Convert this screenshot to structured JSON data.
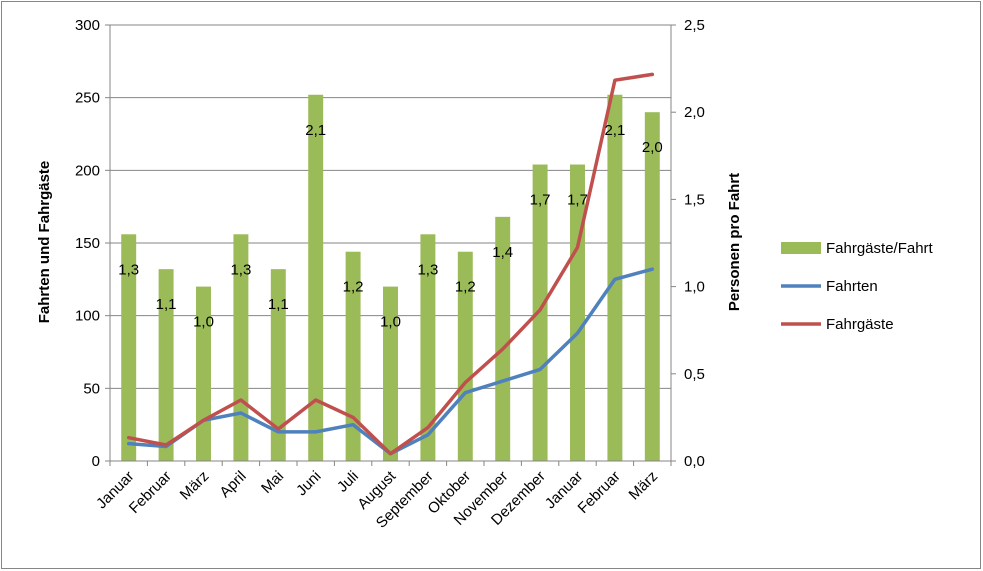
{
  "chart_data": {
    "type": "bar",
    "categories": [
      "Januar",
      "Februar",
      "März",
      "April",
      "Mai",
      "Juni",
      "Juli",
      "August",
      "September",
      "Oktober",
      "November",
      "Dezember",
      "Januar",
      "Februar",
      "März"
    ],
    "y_left": {
      "label": "Fahrten und Fahrgäste",
      "min": 0,
      "max": 300,
      "ticks": [
        "0",
        "50",
        "100",
        "150",
        "200",
        "250",
        "300"
      ]
    },
    "y_right": {
      "label": "Personen pro Fahrt",
      "min": 0,
      "max": 2.5,
      "ticks": [
        "0,0",
        "0,5",
        "1,0",
        "1,5",
        "2,0",
        "2,5"
      ]
    },
    "series": [
      {
        "name": "Fahrgäste/Fahrt",
        "kind": "bar",
        "axis": "right",
        "color": "#9bbb59",
        "values": [
          1.3,
          1.1,
          1.0,
          1.3,
          1.1,
          2.1,
          1.2,
          1.0,
          1.3,
          1.2,
          1.4,
          1.7,
          1.7,
          2.1,
          2.0
        ],
        "labels": [
          "1,3",
          "1,1",
          "1,0",
          "1,3",
          "1,1",
          "2,1",
          "1,2",
          "1,0",
          "1,3",
          "1,2",
          "1,4",
          "1,7",
          "1,7",
          "2,1",
          "2,0"
        ]
      },
      {
        "name": "Fahrten",
        "kind": "line",
        "axis": "left",
        "color": "#4f81bd",
        "values": [
          12,
          10,
          28,
          33,
          20,
          20,
          25,
          5,
          18,
          47,
          55,
          63,
          88,
          125,
          132
        ]
      },
      {
        "name": "Fahrgäste",
        "kind": "line",
        "axis": "left",
        "color": "#c0504d",
        "values": [
          16,
          11,
          28,
          42,
          22,
          42,
          30,
          5,
          23,
          54,
          77,
          104,
          147,
          262,
          266
        ]
      }
    ],
    "legend_position": "right",
    "grid": "horizontal"
  }
}
